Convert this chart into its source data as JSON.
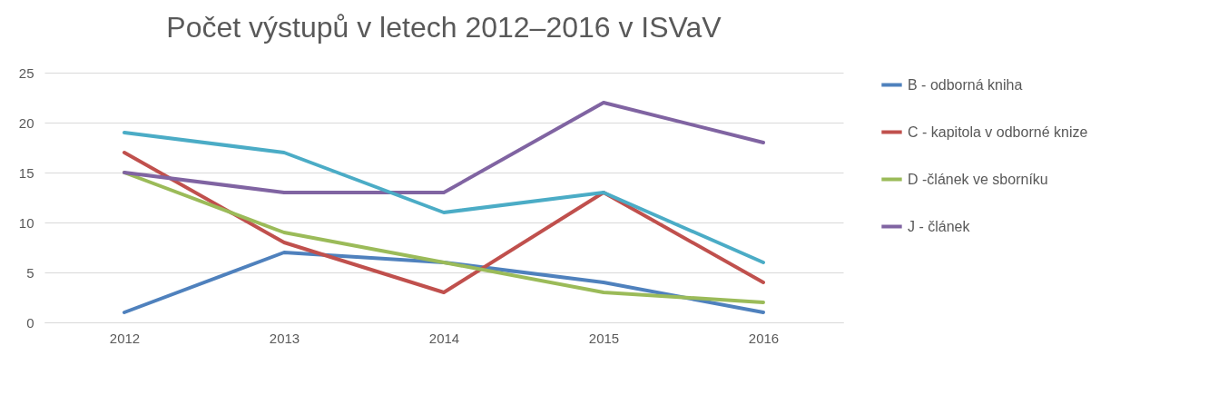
{
  "chart_data": {
    "type": "line",
    "title": "Počet výstupů v letech 2012–2016 v ISVaV",
    "categories": [
      "2012",
      "2013",
      "2014",
      "2015",
      "2016"
    ],
    "series": [
      {
        "name": "B - odborná kniha",
        "color": "#4f81bd",
        "values": [
          1,
          7,
          6,
          4,
          1
        ]
      },
      {
        "name": "C - kapitola v odborné knize",
        "color": "#c0504d",
        "values": [
          17,
          8,
          3,
          13,
          4
        ]
      },
      {
        "name": "D -článek ve sborníku",
        "color": "#9bbb59",
        "values": [
          15,
          9,
          6,
          3,
          2
        ]
      },
      {
        "name": "J - článek",
        "color": "#8064a2",
        "values": [
          15,
          13,
          13,
          22,
          18
        ]
      },
      {
        "color": "#4bacc6",
        "values": [
          19,
          17,
          11,
          13,
          6
        ]
      }
    ],
    "ylim": [
      0,
      25
    ],
    "yticks": [
      0,
      5,
      10,
      15,
      20,
      25
    ],
    "grid": "y",
    "legend": "right",
    "marker": "none",
    "line_style": "solid"
  }
}
